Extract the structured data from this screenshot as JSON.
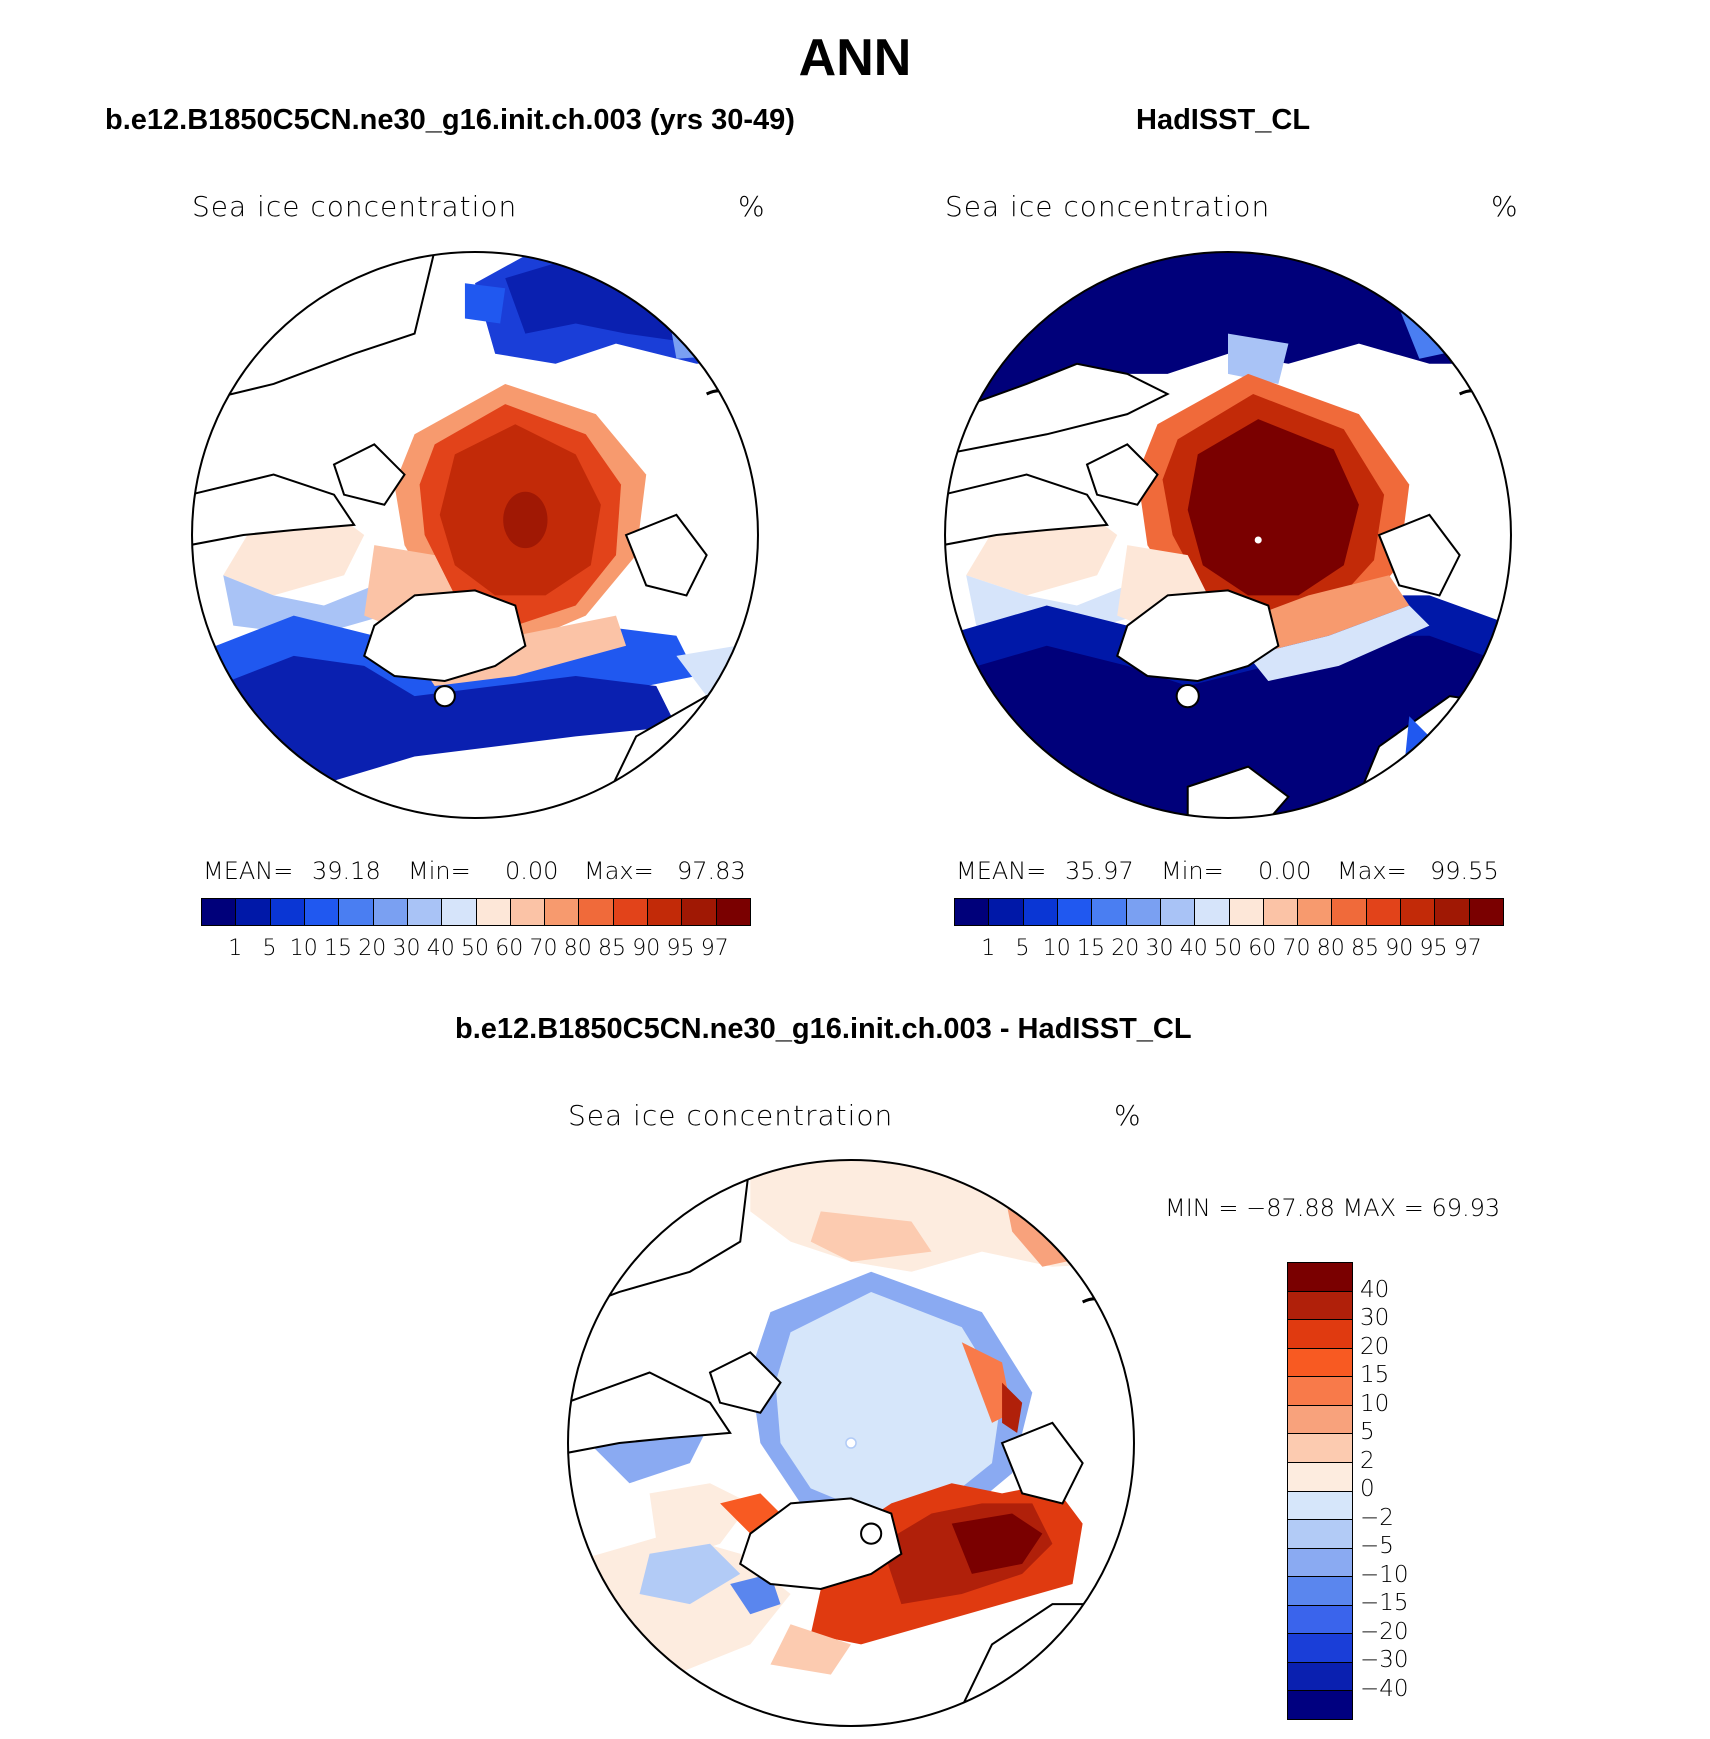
{
  "title": "ANN",
  "panels": [
    {
      "title": "b.e12.B1850C5CN.ne30_g16.init.ch.003 (yrs 30-49)",
      "var_label": "Sea ice concentration",
      "units": "%",
      "mean_label": "MEAN=",
      "mean": "39.18",
      "min_label": "Min=",
      "min": "0.00",
      "max_label": "Max=",
      "max": "97.83"
    },
    {
      "title": "HadISST_CL",
      "var_label": "Sea ice concentration",
      "units": "%",
      "mean_label": "MEAN=",
      "mean": "35.97",
      "min_label": "Min=",
      "min": "0.00",
      "max_label": "Max=",
      "max": "99.55"
    },
    {
      "title": "b.e12.B1850C5CN.ne30_g16.init.ch.003 - HadISST_CL",
      "var_label": "Sea ice concentration",
      "units": "%",
      "minmax": "MIN = −87.88 MAX =   69.93"
    }
  ],
  "colorbar_abs": {
    "levels": [
      "1",
      "5",
      "10",
      "15",
      "20",
      "30",
      "40",
      "50",
      "60",
      "70",
      "80",
      "85",
      "90",
      "95",
      "97"
    ],
    "colors": [
      "#00007a",
      "#0018a8",
      "#0a36d4",
      "#2058f0",
      "#4a7ef2",
      "#7aa0f2",
      "#a9c3f6",
      "#d6e4fa",
      "#fde7d8",
      "#fbc3a6",
      "#f79a6e",
      "#f06a3a",
      "#e2431a",
      "#c22a08",
      "#a01804",
      "#7a0000"
    ]
  },
  "colorbar_diff": {
    "levels": [
      "40",
      "30",
      "20",
      "15",
      "10",
      "5",
      "2",
      "0",
      "−2",
      "−5",
      "−10",
      "−15",
      "−20",
      "−30",
      "−40"
    ],
    "colors": [
      "#7a0000",
      "#b0200a",
      "#e03a10",
      "#f85a22",
      "#f87a4a",
      "#f8a27c",
      "#fccbb0",
      "#fdecdf",
      "#d6e6fa",
      "#b2cbf6",
      "#8aaaf2",
      "#5a86ee",
      "#3a64ec",
      "#1a3ed8",
      "#0a20b0",
      "#000080"
    ]
  }
}
